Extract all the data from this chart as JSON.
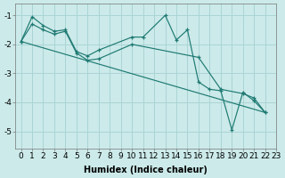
{
  "xlabel": "Humidex (Indice chaleur)",
  "background_color": "#cceaea",
  "grid_color": "#aad4d4",
  "line_color": "#1e7a72",
  "xlim": [
    -0.5,
    23
  ],
  "ylim": [
    -5.6,
    -0.6
  ],
  "yticks": [
    -5,
    -4,
    -3,
    -2,
    -1
  ],
  "xticks": [
    0,
    1,
    2,
    3,
    4,
    5,
    6,
    7,
    8,
    9,
    10,
    11,
    12,
    13,
    14,
    15,
    16,
    17,
    18,
    19,
    20,
    21,
    22,
    23
  ],
  "line1_x": [
    0,
    1,
    2,
    3,
    4,
    5,
    6,
    7,
    10,
    11,
    13,
    14,
    15,
    16,
    17,
    18,
    19,
    20,
    21,
    22
  ],
  "line1_y": [
    -1.9,
    -1.05,
    -1.35,
    -1.55,
    -1.5,
    -2.25,
    -2.4,
    -2.2,
    -1.75,
    -1.75,
    -1.0,
    -1.85,
    -1.5,
    -3.3,
    -3.55,
    -3.6,
    -4.95,
    -3.65,
    -3.95,
    -4.35
  ],
  "line2_x": [
    0,
    1,
    2,
    3,
    4,
    5,
    6,
    7,
    10,
    16,
    18,
    20,
    21,
    22
  ],
  "line2_y": [
    -1.9,
    -1.3,
    -1.5,
    -1.65,
    -1.55,
    -2.3,
    -2.55,
    -2.5,
    -2.0,
    -2.45,
    -3.55,
    -3.7,
    -3.85,
    -4.35
  ],
  "line3_x": [
    0,
    22
  ],
  "line3_y": [
    -1.9,
    -4.35
  ],
  "fontsize_xlabel": 7,
  "tick_fontsize": 6.5
}
